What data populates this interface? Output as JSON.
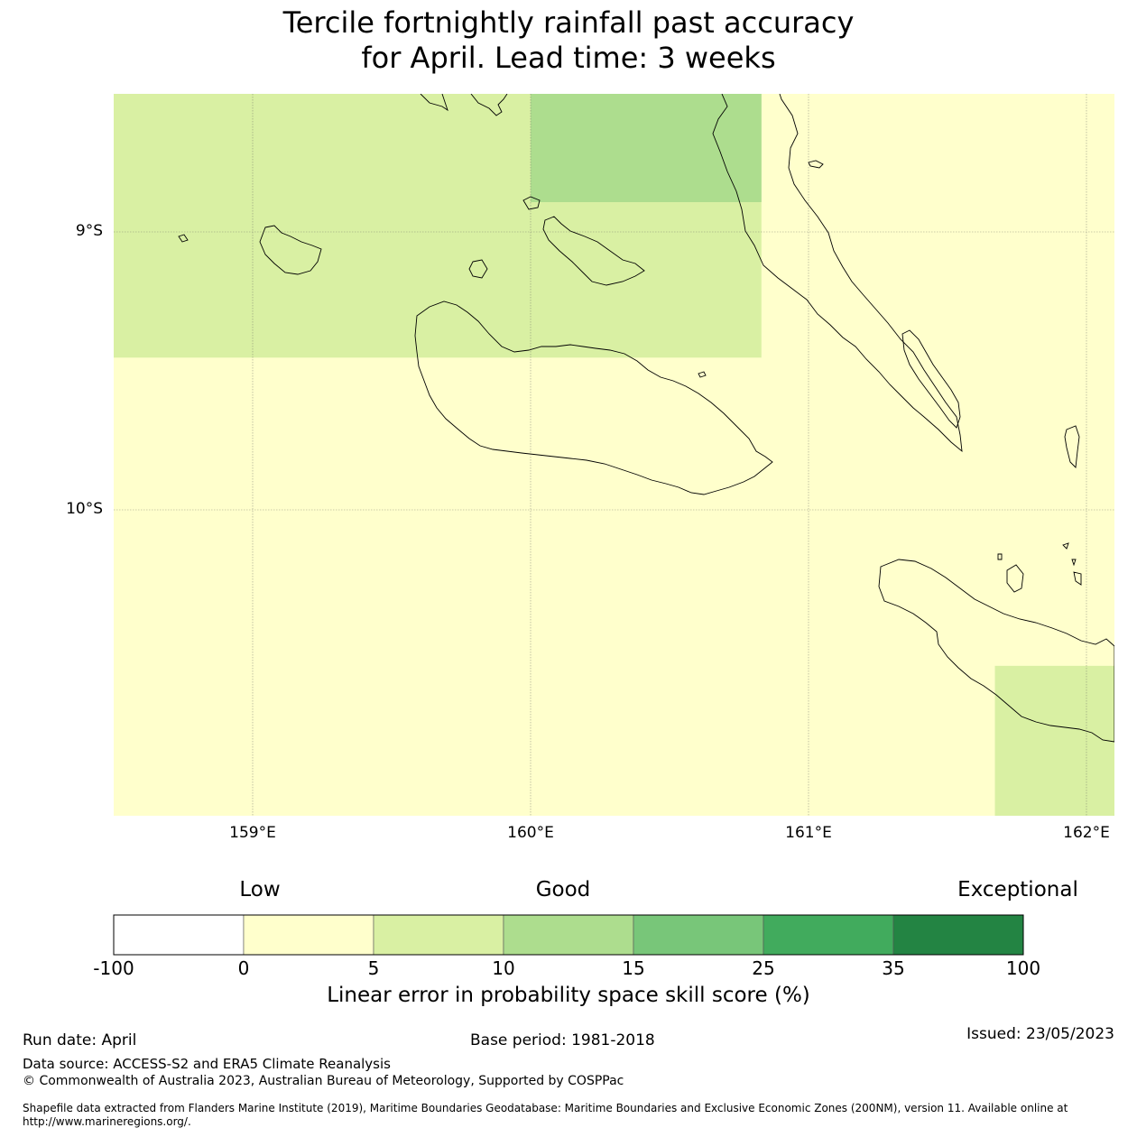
{
  "title": {
    "line1": "Tercile fortnightly rainfall past accuracy",
    "line2": "for April. Lead time: 3 weeks"
  },
  "map": {
    "lat_labels": [
      "9°S",
      "10°S"
    ],
    "lon_labels": [
      "159°E",
      "160°E",
      "161°E",
      "162°E"
    ],
    "lon_range": [
      158.5,
      162.1
    ],
    "lat_range": [
      -8.5,
      -11.1
    ],
    "cells": [
      {
        "lon": [
          158.5,
          160.83
        ],
        "lat": [
          -8.5,
          -9.45
        ],
        "color": "#d9f0a3"
      },
      {
        "lon": [
          160.0,
          160.83
        ],
        "lat": [
          -8.5,
          -8.89
        ],
        "color": "#addd8e"
      },
      {
        "lon": [
          161.67,
          162.1
        ],
        "lat": [
          -10.56,
          -11.1
        ],
        "color": "#d9f0a3"
      }
    ],
    "background_color": "#ffffcc"
  },
  "colorbar": {
    "headings": [
      "Low",
      "Good",
      "Exceptional"
    ],
    "ticks": [
      "-100",
      "0",
      "5",
      "10",
      "15",
      "25",
      "35",
      "100"
    ],
    "colors": [
      "#ffffff",
      "#ffffcc",
      "#d9f0a3",
      "#addd8e",
      "#78c679",
      "#41ab5d",
      "#238443"
    ],
    "label": "Linear error in probability space skill score (%)"
  },
  "footer": {
    "run_date": "Run date: April",
    "base_period": "Base period: 1981-2018",
    "issued": "Issued: 23/05/2023",
    "data_source": "Data source: ACCESS-S2 and ERA5 Climate Reanalysis",
    "copyright": "© Commonwealth of Australia 2023, Australian Bureau of Meteorology, Supported by COSPPac",
    "shapefile_line1": "Shapefile data extracted from Flanders Marine Institute (2019), Maritime Boundaries Geodatabase: Maritime Boundaries and Exclusive Economic Zones (200NM), version 11. Available online at",
    "shapefile_line2": "http://www.marineregions.org/."
  }
}
